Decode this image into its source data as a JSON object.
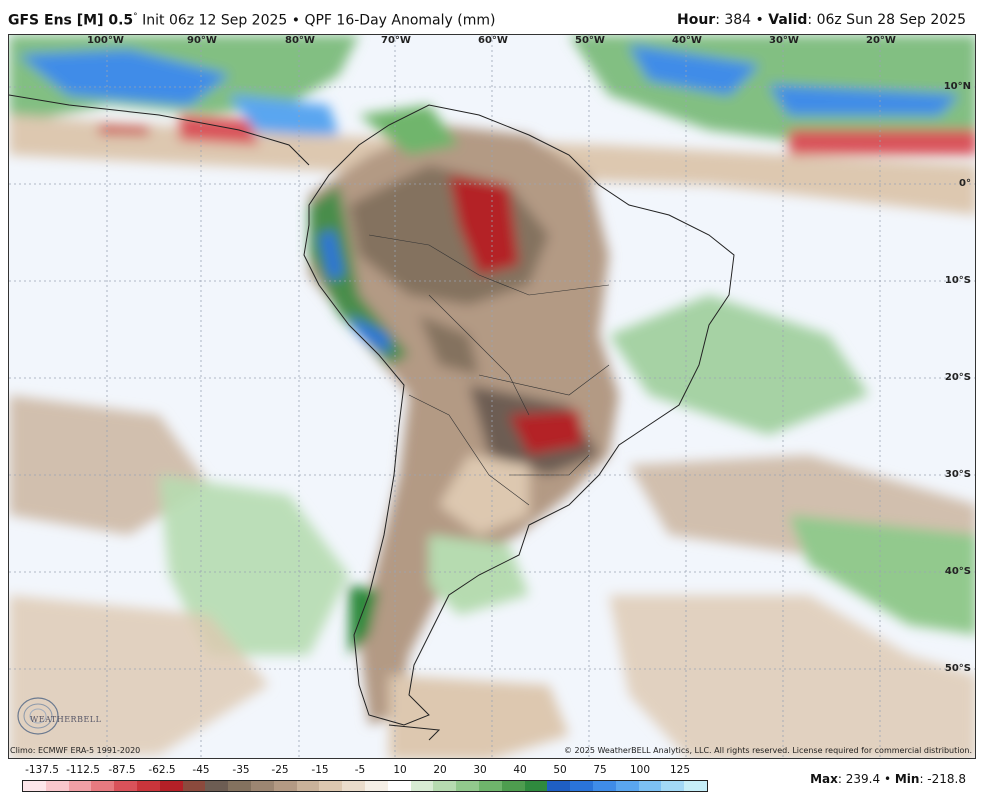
{
  "header": {
    "model": "GFS Ens [M] 0.5",
    "degree": "°",
    "init": "Init 06z 12 Sep 2025",
    "bullet": "•",
    "product": "QPF 16-Day Anomaly (mm)",
    "hour_label": "Hour",
    "hour_value": ": 384",
    "valid_label": "Valid",
    "valid_value": ": 06z Sun 28 Sep 2025"
  },
  "map": {
    "longitudes": [
      "100°W",
      "90°W",
      "80°W",
      "70°W",
      "60°W",
      "50°W",
      "40°W",
      "30°W",
      "20°W"
    ],
    "latitudes": [
      "10°N",
      "0°",
      "10°S",
      "20°S",
      "30°S",
      "40°S",
      "50°S"
    ]
  },
  "credits": {
    "climo": "Climo: ECMWF ERA-5 1991-2020",
    "copyright": "© 2025 WeatherBELL Analytics, LLC. All rights reserved. License required for commercial distribution.",
    "logo_text": "WEATHERBELL"
  },
  "legend": {
    "ticks": [
      "-137.5",
      "-112.5",
      "-87.5",
      "-62.5",
      "-45",
      "-35",
      "-25",
      "-15",
      "-5",
      "10",
      "20",
      "30",
      "40",
      "50",
      "75",
      "100",
      "125"
    ],
    "colors": [
      "#fde6ea",
      "#f9c7cc",
      "#f1a0a6",
      "#e77a80",
      "#d9525a",
      "#c9353b",
      "#b42027",
      "#8b4a3d",
      "#6d5d53",
      "#84725f",
      "#9c8672",
      "#b39a84",
      "#c9b29a",
      "#ddc8b0",
      "#eadccb",
      "#f5efe6",
      "#ffffff",
      "#d8ecd4",
      "#b6dbb0",
      "#92c98d",
      "#6fb56c",
      "#4e9d4f",
      "#2f8a3e",
      "#1f5fc4",
      "#2a74d9",
      "#3f8ce8",
      "#5aa6f0",
      "#7cc0f4",
      "#a2d8f6",
      "#c6eef8"
    ]
  },
  "stats": {
    "max_label": "Max",
    "max_value": ": 239.4",
    "bullet": "•",
    "min_label": "Min",
    "min_value": ": -218.8"
  }
}
